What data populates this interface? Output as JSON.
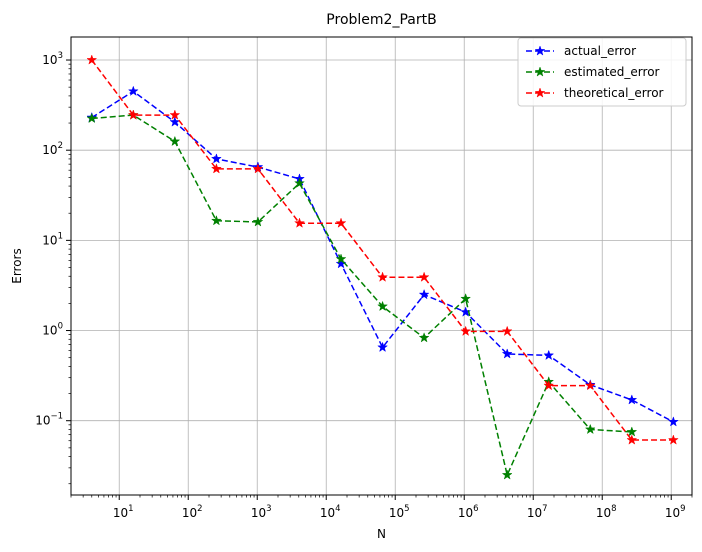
{
  "chart_data": {
    "type": "line",
    "title": "Problem2_PartB",
    "xlabel": "N",
    "ylabel": "Errors",
    "xscale": "log",
    "yscale": "log",
    "xlim": [
      2,
      2000000000
    ],
    "ylim": [
      0.015,
      1800
    ],
    "grid": true,
    "legend_position": "top-right",
    "x": [
      4,
      16,
      64,
      256,
      1024,
      4096,
      16384,
      65536,
      262144,
      1048576,
      4194304,
      16777216,
      67108864,
      268435456,
      1073741824
    ],
    "x_ticks": [
      {
        "value": 10,
        "base": "10",
        "exp": "1"
      },
      {
        "value": 100,
        "base": "10",
        "exp": "2"
      },
      {
        "value": 1000,
        "base": "10",
        "exp": "3"
      },
      {
        "value": 10000,
        "base": "10",
        "exp": "4"
      },
      {
        "value": 100000,
        "base": "10",
        "exp": "5"
      },
      {
        "value": 1000000,
        "base": "10",
        "exp": "6"
      },
      {
        "value": 10000000,
        "base": "10",
        "exp": "7"
      },
      {
        "value": 100000000,
        "base": "10",
        "exp": "8"
      },
      {
        "value": 1000000000,
        "base": "10",
        "exp": "9"
      }
    ],
    "y_ticks": [
      {
        "value": 0.1,
        "base": "10",
        "exp": "−1"
      },
      {
        "value": 1,
        "base": "10",
        "exp": "0"
      },
      {
        "value": 10,
        "base": "10",
        "exp": "1"
      },
      {
        "value": 100,
        "base": "10",
        "exp": "2"
      },
      {
        "value": 1000,
        "base": "10",
        "exp": "3"
      }
    ],
    "series": [
      {
        "name": "actual_error",
        "color": "#0000ff",
        "linestyle": "dashed",
        "marker": "star",
        "values": [
          230,
          450,
          205,
          80,
          65,
          48,
          5.5,
          0.65,
          2.5,
          1.6,
          0.55,
          0.53,
          0.25,
          0.17,
          0.097
        ]
      },
      {
        "name": "estimated_error",
        "color": "#008000",
        "linestyle": "dashed",
        "marker": "star",
        "values": [
          225,
          245,
          125,
          16.5,
          16,
          43,
          6.2,
          1.85,
          0.83,
          2.25,
          0.025,
          0.27,
          0.08,
          0.075,
          null
        ]
      },
      {
        "name": "theoretical_error",
        "color": "#ff0000",
        "linestyle": "dashed",
        "marker": "star",
        "values": [
          1000,
          245,
          245,
          62,
          62,
          15.5,
          15.5,
          3.9,
          3.9,
          0.98,
          0.98,
          0.245,
          0.245,
          0.061,
          0.061
        ]
      }
    ]
  }
}
